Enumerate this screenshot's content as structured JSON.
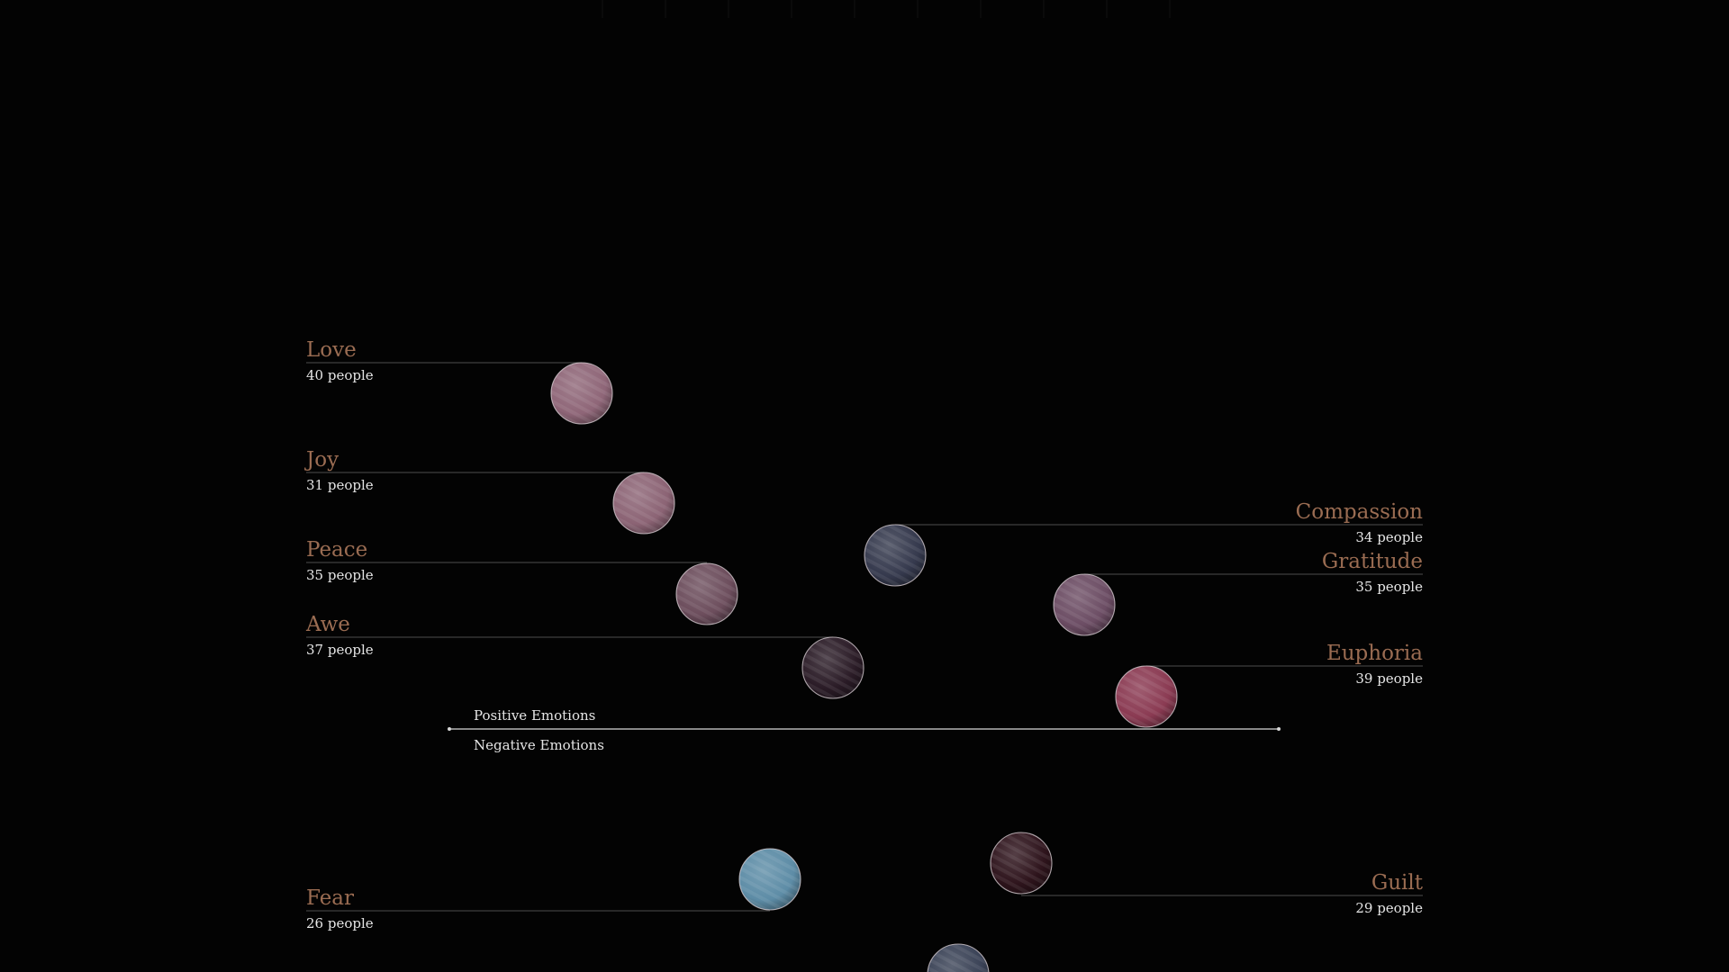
{
  "palette": {
    "background": "#030303",
    "label": "#9a6c52",
    "count_text": "#e6e6e6",
    "leader": "#4c4c4c",
    "axis": "#d8d8d8"
  },
  "chart_data": {
    "type": "scatter",
    "axis": {
      "positive_label": "Positive Emotions",
      "negative_label": "Negative Emotions"
    },
    "emotions": [
      {
        "key": "love",
        "name": "Love",
        "people": 40,
        "count_label": "40 people",
        "valence": "positive",
        "label_side": "left",
        "color": "#8e6577"
      },
      {
        "key": "joy",
        "name": "Joy",
        "people": 31,
        "count_label": "31 people",
        "valence": "positive",
        "label_side": "left",
        "color": "#8b6374"
      },
      {
        "key": "peace",
        "name": "Peace",
        "people": 35,
        "count_label": "35 people",
        "valence": "positive",
        "label_side": "left",
        "color": "#6c4d5c"
      },
      {
        "key": "awe",
        "name": "Awe",
        "people": 37,
        "count_label": "37 people",
        "valence": "positive",
        "label_side": "left",
        "color": "#2a1b26"
      },
      {
        "key": "compassion",
        "name": "Compassion",
        "people": 34,
        "count_label": "34 people",
        "valence": "positive",
        "label_side": "right",
        "color": "#35394d"
      },
      {
        "key": "gratitude",
        "name": "Gratitude",
        "people": 35,
        "count_label": "35 people",
        "valence": "positive",
        "label_side": "right",
        "color": "#6b4c63"
      },
      {
        "key": "euphoria",
        "name": "Euphoria",
        "people": 39,
        "count_label": "39 people",
        "valence": "positive",
        "label_side": "right",
        "color": "#8a3a52"
      },
      {
        "key": "fear",
        "name": "Fear",
        "people": 26,
        "count_label": "26 people",
        "valence": "negative",
        "label_side": "left",
        "color": "#5d8ca6"
      },
      {
        "key": "guilt",
        "name": "Guilt",
        "people": 29,
        "count_label": "29 people",
        "valence": "negative",
        "label_side": "right",
        "color": "#2e141c"
      },
      {
        "key": "unlabeled",
        "name": "",
        "people": null,
        "count_label": "",
        "valence": "negative",
        "label_side": "none",
        "color": "#3a4256"
      }
    ]
  }
}
